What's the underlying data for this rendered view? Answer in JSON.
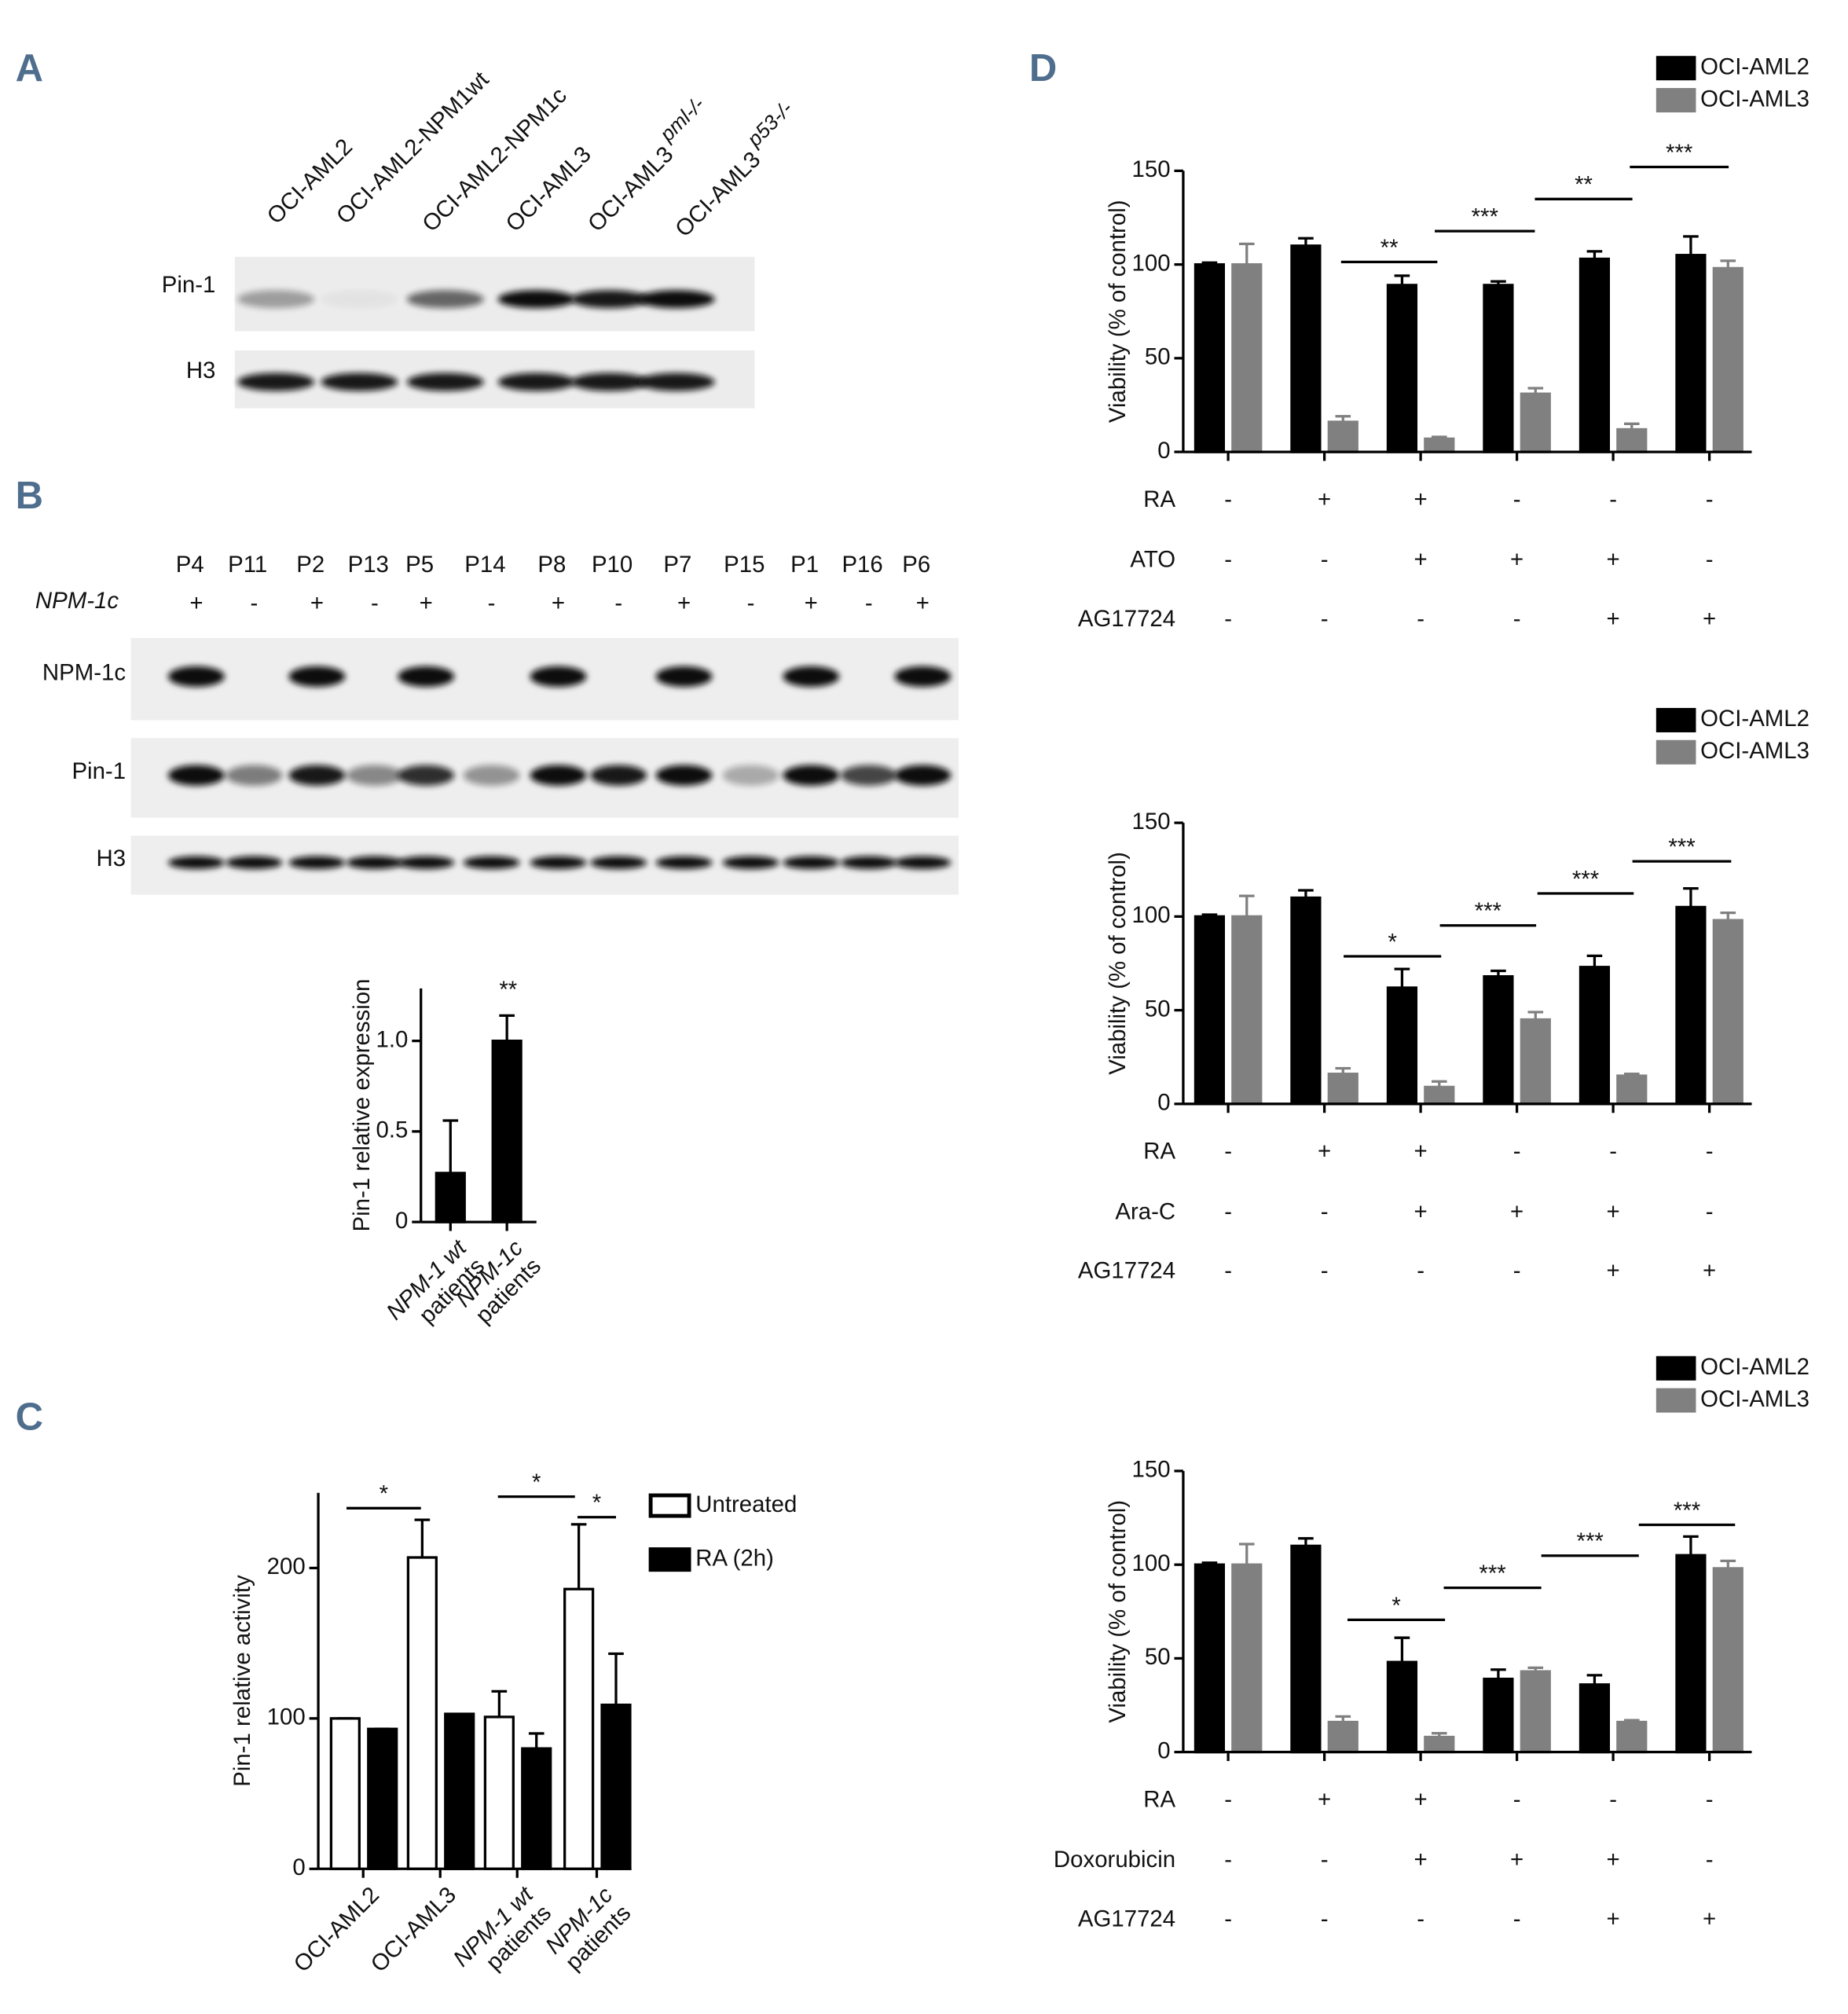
{
  "panel_labels": [
    "A",
    "B",
    "C",
    "D"
  ],
  "blot_a": {
    "lanes": [
      {
        "name": "OCI-AML2"
      },
      {
        "name": "OCI-AML2-NPM1wt"
      },
      {
        "name": "OCI-AML2-NPM1c"
      },
      {
        "name": "OCI-AML3"
      },
      {
        "name": "OCI-AML3",
        "sup": "pml-/-"
      },
      {
        "name": "OCI-AML3",
        "sup": "p53-/-"
      }
    ],
    "rows": [
      "Pin-1",
      "H3"
    ]
  },
  "blot_b": {
    "lanes": [
      "P4",
      "P11",
      "P2",
      "P13",
      "P5",
      "P14",
      "P8",
      "P10",
      "P7",
      "P15",
      "P1",
      "P16",
      "P6"
    ],
    "status_label": "NPM-1c",
    "status": [
      "+",
      "-",
      "+",
      "-",
      "+",
      "-",
      "+",
      "-",
      "+",
      "-",
      "+",
      "-",
      "+"
    ],
    "rows": [
      "NPM-1c",
      "Pin-1",
      "H3"
    ]
  },
  "chart_data": [
    {
      "type": "bar",
      "ylabel": "Pin-1 relative expression",
      "categories": [
        "NPM-1 wt",
        "NPM-1c"
      ],
      "category_second_line": [
        "patients",
        "patients"
      ],
      "category_italic": [
        true,
        true
      ],
      "series": [
        {
          "color": "#000000",
          "values": [
            0.27,
            1.0
          ],
          "errors": [
            0.29,
            0.14
          ]
        }
      ],
      "ylim": [
        0,
        1.29
      ],
      "yticks": [
        0,
        0.5,
        {
          "value": 1,
          "label": "1.0"
        }
      ],
      "annotations": [
        "**"
      ]
    },
    {
      "type": "bar",
      "ylabel": "Pin-1 relative activity",
      "categories": [
        "OCI-AML2",
        "OCI-AML3",
        "NPM-1 wt",
        "NPM-1c"
      ],
      "category_second_line": [
        null,
        null,
        "patients",
        "patients"
      ],
      "category_italic": [
        false,
        false,
        true,
        true
      ],
      "series": [
        {
          "name": "Untreated",
          "color": "#ffffff",
          "values": [
            100,
            207,
            101,
            186
          ],
          "errors": [
            0,
            25,
            17,
            43
          ]
        },
        {
          "name": "RA (2h)",
          "color": "#000000",
          "values": [
            93,
            103,
            80,
            109
          ],
          "errors": [
            0,
            0,
            10,
            34
          ]
        }
      ],
      "ylim": [
        0,
        250
      ],
      "yticks": [
        0,
        100,
        200
      ],
      "annotations": [
        "*",
        "*",
        "*"
      ],
      "legend": true
    },
    {
      "type": "bar",
      "ylabel": "Viability (% of control)",
      "series": [
        {
          "name": "OCI-AML2",
          "color": "#000000",
          "values": [
            100,
            110,
            89,
            89,
            103,
            105
          ],
          "errors": [
            1,
            4,
            5,
            2,
            4,
            10
          ]
        },
        {
          "name": "OCI-AML3",
          "color": "#808080",
          "values": [
            100,
            16,
            7,
            31,
            12,
            98
          ],
          "errors": [
            11,
            3,
            1,
            3,
            3,
            4
          ]
        }
      ],
      "ylim": [
        0,
        150
      ],
      "yticks": [
        0,
        50,
        100,
        150
      ],
      "annotations": [
        "**",
        "***",
        "**",
        "***"
      ],
      "legend": true,
      "conditions": [
        {
          "name": "RA",
          "marks": [
            "-",
            "+",
            "+",
            "-",
            "-",
            "-"
          ]
        },
        {
          "name": "ATO",
          "marks": [
            "-",
            "-",
            "+",
            "+",
            "+",
            "-"
          ]
        },
        {
          "name": "AG17724",
          "marks": [
            "-",
            "-",
            "-",
            "-",
            "+",
            "+"
          ]
        }
      ]
    },
    {
      "type": "bar",
      "ylabel": "Viability (% of control)",
      "series": [
        {
          "name": "OCI-AML2",
          "color": "#000000",
          "values": [
            100,
            110,
            62,
            68,
            73,
            105
          ],
          "errors": [
            1,
            4,
            10,
            3,
            6,
            10
          ]
        },
        {
          "name": "OCI-AML3",
          "color": "#808080",
          "values": [
            100,
            16,
            9,
            45,
            15,
            98
          ],
          "errors": [
            11,
            3,
            3,
            4,
            1,
            4
          ]
        }
      ],
      "ylim": [
        0,
        150
      ],
      "yticks": [
        0,
        50,
        100,
        150
      ],
      "annotations": [
        "*",
        "***",
        "***",
        "***"
      ],
      "legend": true,
      "conditions": [
        {
          "name": "RA",
          "marks": [
            "-",
            "+",
            "+",
            "-",
            "-",
            "-"
          ]
        },
        {
          "name": "Ara-C",
          "marks": [
            "-",
            "-",
            "+",
            "+",
            "+",
            "-"
          ]
        },
        {
          "name": "AG17724",
          "marks": [
            "-",
            "-",
            "-",
            "-",
            "+",
            "+"
          ]
        }
      ]
    },
    {
      "type": "bar",
      "ylabel": "Viability (% of control)",
      "series": [
        {
          "name": "OCI-AML2",
          "color": "#000000",
          "values": [
            100,
            110,
            48,
            39,
            36,
            105
          ],
          "errors": [
            1,
            4,
            13,
            5,
            5,
            10
          ]
        },
        {
          "name": "OCI-AML3",
          "color": "#808080",
          "values": [
            100,
            16,
            8,
            43,
            16,
            98
          ],
          "errors": [
            11,
            3,
            2,
            2,
            1,
            4
          ]
        }
      ],
      "ylim": [
        0,
        150
      ],
      "yticks": [
        0,
        50,
        100,
        150
      ],
      "annotations": [
        "*",
        "***",
        "***",
        "***"
      ],
      "legend": true,
      "conditions": [
        {
          "name": "RA",
          "marks": [
            "-",
            "+",
            "+",
            "-",
            "-",
            "-"
          ]
        },
        {
          "name": "Doxorubicin",
          "marks": [
            "-",
            "-",
            "+",
            "+",
            "+",
            "-"
          ]
        },
        {
          "name": "AG17724",
          "marks": [
            "-",
            "-",
            "-",
            "-",
            "+",
            "+"
          ]
        }
      ]
    }
  ]
}
